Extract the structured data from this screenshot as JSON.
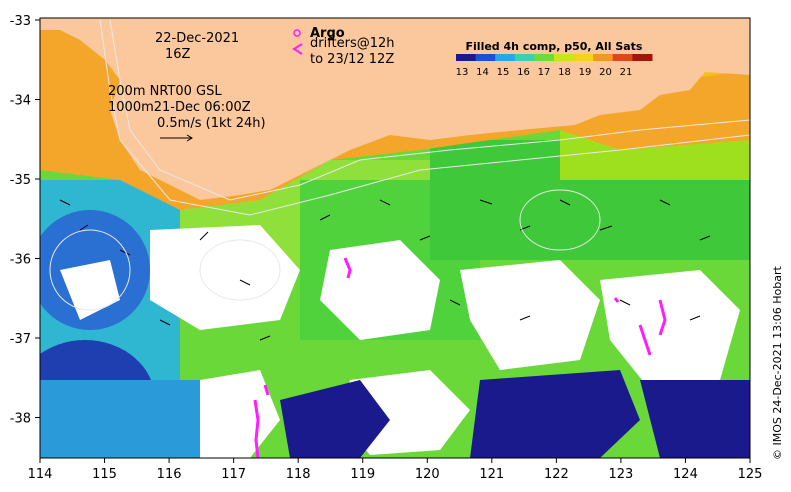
{
  "map": {
    "date": "22-Dec-2021",
    "hour": "16Z",
    "contours_line": "200m  NRT00 GSL",
    "contours_line2": "1000m21-Dec 06:00Z",
    "scale_text": "0.5m/s (1kt 24h)",
    "argo_label": "Argo",
    "drifters_label": "drifters@12h",
    "drifters_to": "to 23/12 12Z",
    "colorbar_title": "Filled 4h comp, p50, All Sats",
    "colorbar_ticks": [
      "13",
      "14",
      "15",
      "16",
      "17",
      "18",
      "19",
      "20",
      "21"
    ],
    "colorbar_colors": [
      "#1a1a8c",
      "#1f4fd6",
      "#23a8e8",
      "#3ad1b0",
      "#6bdc3a",
      "#c8e61a",
      "#f3d21a",
      "#f3962a",
      "#d84a1a",
      "#a0160a"
    ],
    "x_ticks": [
      "114",
      "115",
      "116",
      "117",
      "118",
      "119",
      "120",
      "121",
      "122",
      "123",
      "124",
      "125"
    ],
    "y_ticks": [
      "-33",
      "-34",
      "-35",
      "-36",
      "-37",
      "-38"
    ],
    "credit": "© IMOS 24-Dec-2021 13:06 Hobart",
    "colors": {
      "land": "#fbc79c",
      "cloud": "#ffffff",
      "drifter": "#ff1dff"
    }
  }
}
